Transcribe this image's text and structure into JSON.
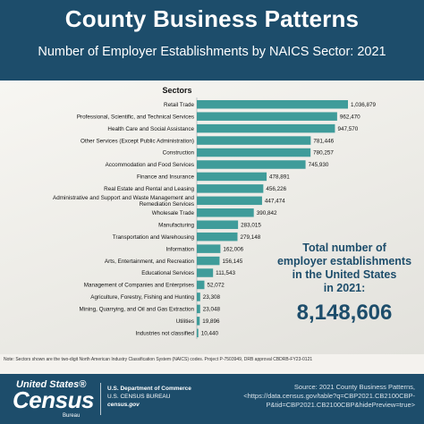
{
  "header": {
    "title": "County Business Patterns",
    "subtitle": "Number of Employer Establishments by NAICS Sector: 2021"
  },
  "colors": {
    "bar": "#3f9c9a",
    "header_bg": "#1d4d6b",
    "accent_text": "#1d4d6b"
  },
  "chart_data": {
    "type": "bar",
    "orientation": "horizontal",
    "ylabel": "Sectors",
    "categories": [
      "Retail Trade",
      "Professional, Scientific, and Technical Services",
      "Health Care and Social Assistance",
      "Other Services (Except Public Administration)",
      "Construction",
      "Accommodation and Food Services",
      "Finance and Insurance",
      "Real Estate and Rental and Leasing",
      "Administrative and Support and Waste Management and Remediation Services",
      "Wholesale Trade",
      "Manufacturing",
      "Transportation and Warehousing",
      "Information",
      "Arts, Entertainment, and Recreation",
      "Educational Services",
      "Management of Companies and Enterprises",
      "Agriculture, Forestry, Fishing and Hunting",
      "Mining, Quarrying, and Oil and Gas Extraction",
      "Utilities",
      "Industries not classified"
    ],
    "values": [
      1036879,
      962470,
      947570,
      781446,
      780257,
      745930,
      478891,
      456226,
      447474,
      390842,
      283015,
      279148,
      162006,
      156145,
      111543,
      52072,
      23308,
      23048,
      19896,
      10440
    ],
    "value_labels": [
      "1,036,879",
      "962,470",
      "947,570",
      "781,446",
      "780,257",
      "745,930",
      "478,891",
      "456,226",
      "447,474",
      "390,842",
      "283,015",
      "279,148",
      "162,006",
      "156,145",
      "111,543",
      "52,072",
      "23,308",
      "23,048",
      "19,896",
      "10,440"
    ],
    "xlim": [
      0,
      1036879
    ],
    "grid": false,
    "legend": "none"
  },
  "total": {
    "label": "Total number of employer establishments in the United States in 2021:",
    "label_lines": [
      "Total number of",
      "employer establishments",
      "in the United States",
      "in 2021:"
    ],
    "value": "8,148,606"
  },
  "note": "Note: Sectors shown are the two-digit North American Industry Classification System (NAICS) codes. Project P-7503949, DRB approval CBDRB-FY23-0121",
  "footer": {
    "logo_line1": "United States®",
    "logo_line2": "Census",
    "logo_line3": "Bureau",
    "agency_line1": "U.S. Department of Commerce",
    "agency_line2": "U.S. CENSUS BUREAU",
    "agency_line3": "census.gov",
    "source_lines": [
      "Source: 2021 County Business Patterns,",
      "<https://data.census.gov/table?q=CBP2021.CB2100CBP-",
      "P&tid=CBP2021.CB2100CBP&hidePreview=true>"
    ]
  }
}
